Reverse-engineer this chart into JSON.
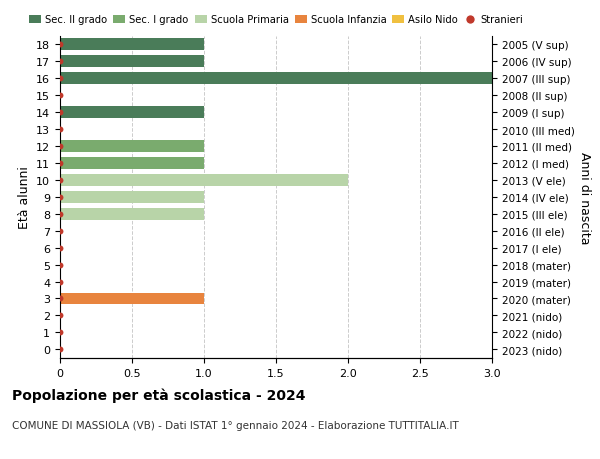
{
  "ages": [
    18,
    17,
    16,
    15,
    14,
    13,
    12,
    11,
    10,
    9,
    8,
    7,
    6,
    5,
    4,
    3,
    2,
    1,
    0
  ],
  "years": [
    "2005 (V sup)",
    "2006 (IV sup)",
    "2007 (III sup)",
    "2008 (II sup)",
    "2009 (I sup)",
    "2010 (III med)",
    "2011 (II med)",
    "2012 (I med)",
    "2013 (V ele)",
    "2014 (IV ele)",
    "2015 (III ele)",
    "2016 (II ele)",
    "2017 (I ele)",
    "2018 (mater)",
    "2019 (mater)",
    "2020 (mater)",
    "2021 (nido)",
    "2022 (nido)",
    "2023 (nido)"
  ],
  "values": [
    1,
    1,
    3,
    0,
    1,
    0,
    1,
    1,
    2,
    1,
    1,
    0,
    0,
    0,
    0,
    1,
    0,
    0,
    0
  ],
  "bar_colors": [
    "#4a7c59",
    "#4a7c59",
    "#4a7c59",
    "#4a7c59",
    "#4a7c59",
    "#7aab6e",
    "#7aab6e",
    "#7aab6e",
    "#b8d4a8",
    "#b8d4a8",
    "#b8d4a8",
    "#b8d4a8",
    "#b8d4a8",
    "#e8843e",
    "#e8843e",
    "#e8843e",
    "#f0c040",
    "#f0c040",
    "#f0c040"
  ],
  "dot_color": "#c0392b",
  "dot_size": 18,
  "legend_items": [
    {
      "label": "Sec. II grado",
      "color": "#4a7c59",
      "type": "patch"
    },
    {
      "label": "Sec. I grado",
      "color": "#7aab6e",
      "type": "patch"
    },
    {
      "label": "Scuola Primaria",
      "color": "#b8d4a8",
      "type": "patch"
    },
    {
      "label": "Scuola Infanzia",
      "color": "#e8843e",
      "type": "patch"
    },
    {
      "label": "Asilo Nido",
      "color": "#f0c040",
      "type": "patch"
    },
    {
      "label": "Stranieri",
      "color": "#c0392b",
      "type": "dot"
    }
  ],
  "xlim": [
    0,
    3.0
  ],
  "xticks": [
    0,
    0.5,
    1.0,
    1.5,
    2.0,
    2.5,
    3.0
  ],
  "ylabel_left": "Età alunni",
  "ylabel_right": "Anni di nascita",
  "title": "Popolazione per età scolastica - 2024",
  "subtitle": "COMUNE DI MASSIOLA (VB) - Dati ISTAT 1° gennaio 2024 - Elaborazione TUTTITALIA.IT",
  "bar_height": 0.7,
  "bg_color": "#ffffff",
  "grid_color": "#cccccc"
}
